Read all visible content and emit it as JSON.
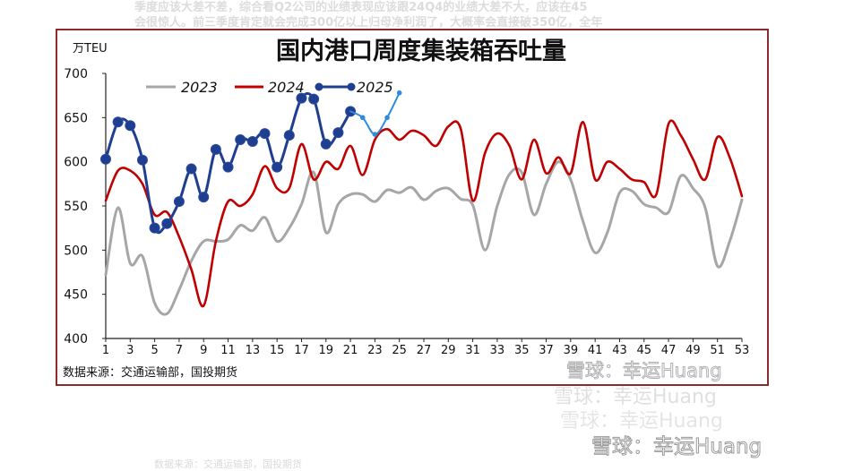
{
  "background_text": {
    "line1": "季度应该大差不差，综合看Q2公司的业绩表现应该跟24Q4的业绩大差不大，应该在45",
    "line2": "会很惊人。前三季度肯定就会完成300亿以上归母净利润了，大概率会直接破350亿，全年"
  },
  "watermark": {
    "text": "雪球：幸运Huang",
    "source_echo": "数据来源：交通运输部，国投期货"
  },
  "colors": {
    "frame": "#8a2a2a",
    "s2023": "#a6a6a6",
    "s2024": "#c00000",
    "s2025": "#1f3e8f",
    "forecast": "#2e8be0"
  },
  "chart_data": {
    "type": "line",
    "title": "国内港口周度集装箱吞吐量",
    "unit_label": "万TEU",
    "source": "数据来源：交通运输部，国投期货",
    "xlim": [
      1,
      53
    ],
    "ylim": [
      400,
      700
    ],
    "x_ticks": [
      1,
      3,
      5,
      7,
      9,
      11,
      13,
      15,
      17,
      19,
      21,
      23,
      25,
      27,
      29,
      31,
      33,
      35,
      37,
      39,
      41,
      43,
      45,
      47,
      49,
      51,
      53
    ],
    "y_ticks": [
      400,
      450,
      500,
      550,
      600,
      650,
      700
    ],
    "legend_position": "top-left",
    "series": [
      {
        "name": "2023",
        "color": "#a6a6a6",
        "x": [
          1,
          2,
          3,
          4,
          5,
          6,
          7,
          8,
          9,
          10,
          11,
          12,
          13,
          14,
          15,
          16,
          17,
          18,
          19,
          20,
          21,
          22,
          23,
          24,
          25,
          26,
          27,
          28,
          29,
          30,
          31,
          32,
          33,
          34,
          35,
          36,
          37,
          38,
          39,
          40,
          41,
          42,
          43,
          44,
          45,
          46,
          47,
          48,
          49,
          50,
          51,
          52,
          53
        ],
        "values": [
          472,
          548,
          485,
          493,
          440,
          428,
          455,
          488,
          510,
          510,
          512,
          528,
          522,
          537,
          510,
          525,
          552,
          588,
          520,
          552,
          563,
          563,
          555,
          568,
          565,
          571,
          557,
          567,
          570,
          558,
          551,
          500,
          550,
          586,
          588,
          540,
          575,
          600,
          580,
          533,
          497,
          520,
          565,
          567,
          552,
          548,
          543,
          584,
          570,
          548,
          482,
          510,
          557
        ]
      },
      {
        "name": "2024",
        "color": "#c00000",
        "x": [
          1,
          2,
          3,
          4,
          5,
          6,
          7,
          8,
          9,
          10,
          11,
          12,
          13,
          14,
          15,
          16,
          17,
          18,
          19,
          20,
          21,
          22,
          23,
          24,
          25,
          26,
          27,
          28,
          29,
          30,
          31,
          32,
          33,
          34,
          35,
          36,
          37,
          38,
          39,
          40,
          41,
          42,
          43,
          44,
          45,
          46,
          47,
          48,
          49,
          50,
          51,
          52,
          53
        ],
        "values": [
          556,
          590,
          590,
          575,
          540,
          543,
          515,
          478,
          437,
          510,
          555,
          550,
          563,
          595,
          570,
          570,
          620,
          580,
          600,
          592,
          618,
          585,
          625,
          637,
          625,
          635,
          630,
          618,
          640,
          638,
          556,
          610,
          632,
          618,
          580,
          625,
          587,
          605,
          587,
          645,
          580,
          600,
          592,
          580,
          577,
          563,
          643,
          630,
          603,
          580,
          628,
          605,
          561
        ]
      },
      {
        "name": "2025",
        "color": "#1f3e8f",
        "x": [
          1,
          2,
          3,
          4,
          5,
          6,
          7,
          8,
          9,
          10,
          11,
          12,
          13,
          14,
          15,
          16,
          17,
          18,
          19,
          20,
          21
        ],
        "values": [
          603,
          645,
          641,
          602,
          525,
          530,
          555,
          592,
          560,
          614,
          594,
          625,
          623,
          632,
          594,
          630,
          672,
          671,
          620,
          633,
          657
        ]
      },
      {
        "name": "",
        "color": "#2e8be0",
        "x": [
          21,
          22,
          23,
          24,
          25
        ],
        "values": [
          657,
          650,
          631,
          650,
          678
        ]
      }
    ]
  }
}
